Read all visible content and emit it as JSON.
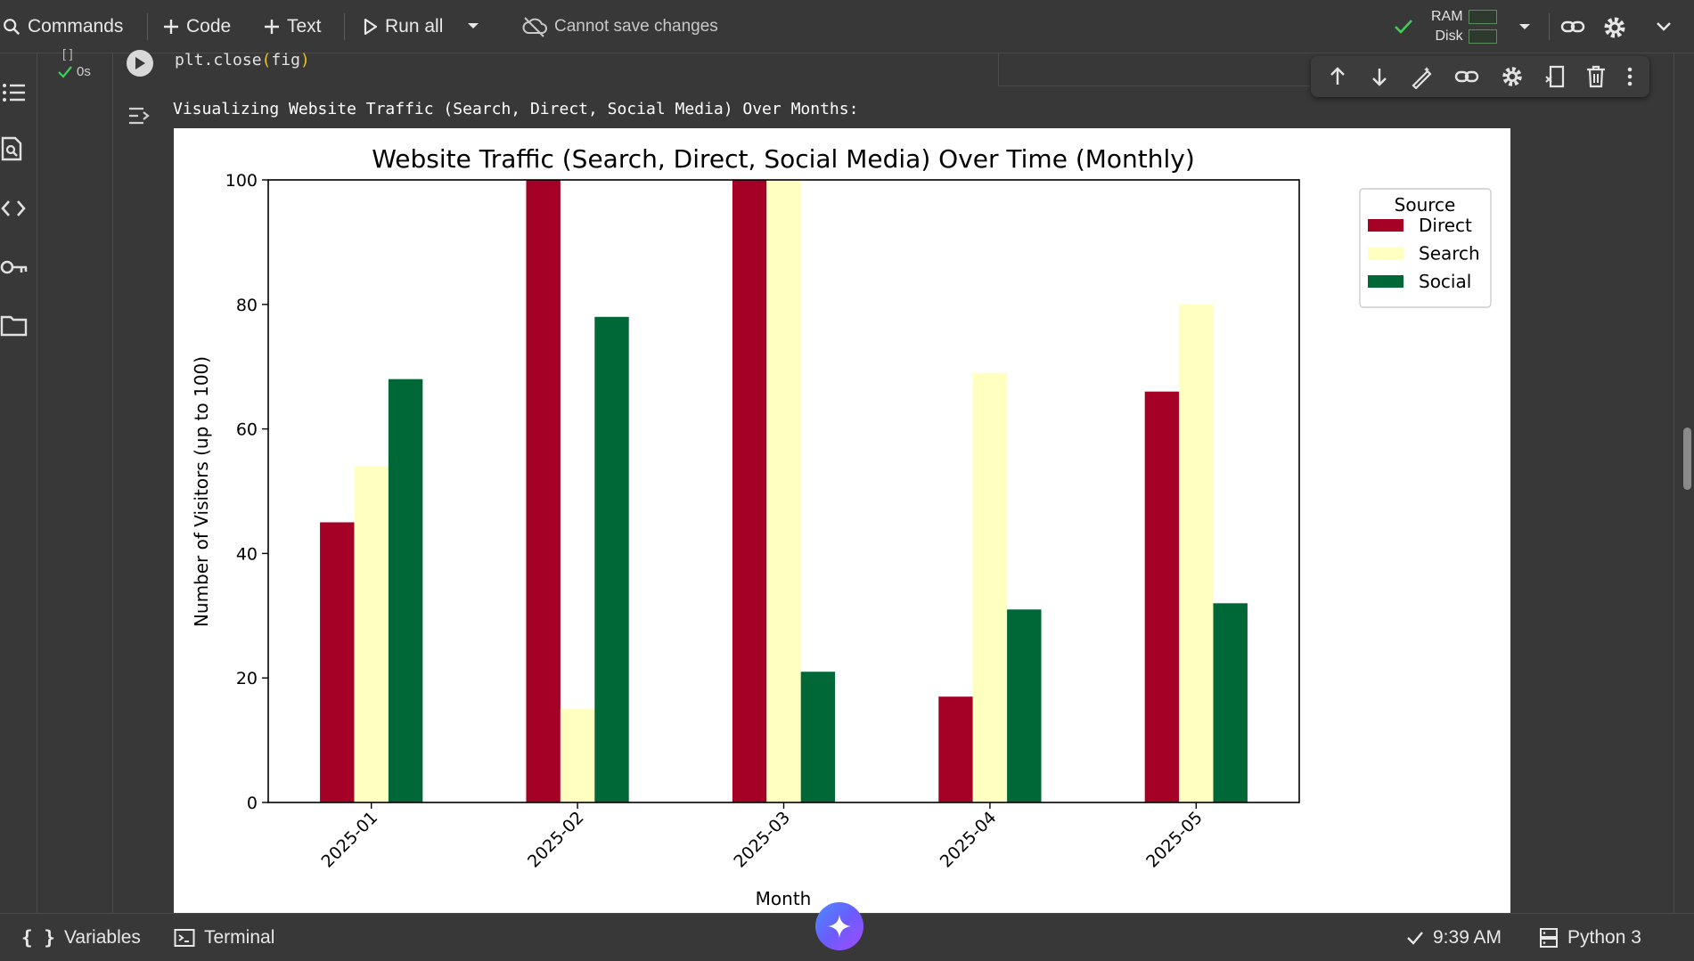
{
  "toolbar": {
    "commands_label": "Commands",
    "code_label": "Code",
    "text_label": "Text",
    "run_all_label": "Run all",
    "save_status": "Cannot save changes",
    "ram_label": "RAM",
    "disk_label": "Disk"
  },
  "gutter": {
    "exec_count": "[ ]",
    "exec_time": "0s"
  },
  "cell": {
    "code_text": "plt.close",
    "code_arg": "fig",
    "output_text": "Visualizing Website Traffic (Search, Direct, Social Media) Over Months:"
  },
  "statusbar": {
    "variables_label": "Variables",
    "terminal_label": "Terminal",
    "time": "9:39 AM",
    "runtime": "Python 3"
  },
  "colors": {
    "direct": "#a50026",
    "search": "#ffffbf",
    "social": "#006837"
  },
  "chart_data": {
    "type": "bar",
    "title": "Website Traffic (Search, Direct, Social Media) Over Time (Monthly)",
    "xlabel": "Month",
    "ylabel": "Number of Visitors (up to 100)",
    "ylim": [
      0,
      100
    ],
    "yticks": [
      0,
      20,
      40,
      60,
      80,
      100
    ],
    "categories": [
      "2025-01",
      "2025-02",
      "2025-03",
      "2025-04",
      "2025-05"
    ],
    "legend_title": "Source",
    "legend_position": "outside-top-right",
    "grid": false,
    "series": [
      {
        "name": "Direct",
        "color": "#a50026",
        "values": [
          45,
          100,
          100,
          17,
          66
        ]
      },
      {
        "name": "Search",
        "color": "#ffffbf",
        "values": [
          54,
          15,
          100,
          69,
          80
        ]
      },
      {
        "name": "Social",
        "color": "#006837",
        "values": [
          68,
          78,
          21,
          31,
          32
        ]
      }
    ]
  }
}
